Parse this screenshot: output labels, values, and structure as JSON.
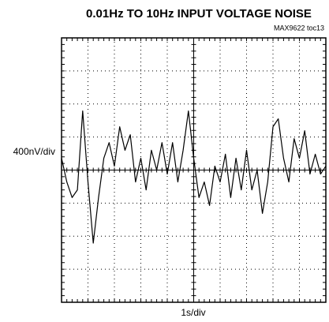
{
  "chart_data": {
    "type": "line",
    "title": "0.01Hz TO 10Hz INPUT VOLTAGE NOISE",
    "subtitle": "MAX9622 toc13",
    "y_label": "400nV/div",
    "x_label": "1s/div",
    "x": [
      0,
      0.2,
      0.4,
      0.6,
      0.8,
      1,
      1.2,
      1.4,
      1.6,
      1.8,
      2,
      2.2,
      2.4,
      2.6,
      2.8,
      3,
      3.2,
      3.4,
      3.6,
      3.8,
      4,
      4.2,
      4.4,
      4.6,
      4.8,
      5,
      5.2,
      5.4,
      5.6,
      5.8,
      6,
      6.2,
      6.4,
      6.6,
      6.8,
      7,
      7.2,
      7.4,
      7.6,
      7.8,
      8,
      8.2,
      8.4,
      8.6,
      8.8,
      9,
      9.2,
      9.4,
      9.6,
      9.8,
      10
    ],
    "values": [
      0.36,
      -0.36,
      -0.83,
      -0.6,
      1.79,
      -0.36,
      -2.21,
      -0.83,
      0.36,
      0.83,
      0.12,
      1.31,
      0.6,
      1.07,
      -0.36,
      0.36,
      -0.6,
      0.6,
      0,
      0.83,
      -0.12,
      0.83,
      -0.36,
      0.6,
      1.79,
      0.36,
      -0.83,
      -0.36,
      -1.07,
      0.12,
      -0.36,
      0.48,
      -0.83,
      0.36,
      -0.6,
      0.6,
      -0.6,
      0,
      -1.31,
      -0.36,
      1.31,
      1.55,
      0.36,
      -0.36,
      0.95,
      0.36,
      1.19,
      -0.12,
      0.48,
      -0.12,
      0.12
    ],
    "color": "#000000",
    "xlim": [
      0,
      10
    ],
    "ylim": [
      -4,
      4
    ],
    "xticks": [
      0,
      1,
      2,
      3,
      4,
      5,
      6,
      7,
      8,
      9,
      10
    ],
    "yticks": [
      -4,
      -3,
      -2,
      -1,
      0,
      1,
      2,
      3,
      4
    ],
    "grid": true
  }
}
